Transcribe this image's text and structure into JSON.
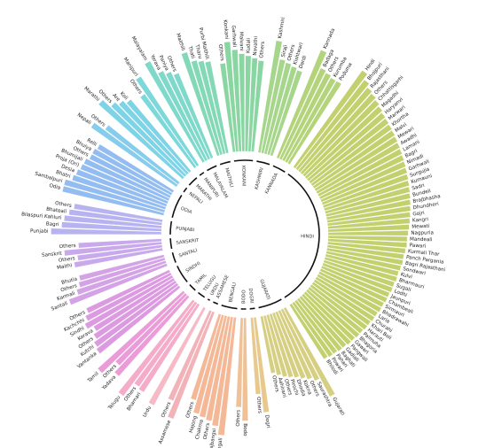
{
  "chart_data": {
    "type": "bar",
    "layout": "circular",
    "title": "",
    "groups": [
      {
        "name": "HINDI",
        "color": "#c2d06e",
        "items": [
          [
            "Hindi",
            100
          ],
          [
            "Bhojpuri",
            94
          ],
          [
            "Rajasthani",
            90
          ],
          [
            "Others",
            88
          ],
          [
            "Chhattisgarhi",
            86
          ],
          [
            "Magadhi",
            84
          ],
          [
            "Haryanvi",
            82
          ],
          [
            "Marwari",
            81
          ],
          [
            "Khortha",
            80
          ],
          [
            "Malvi",
            79
          ],
          [
            "Mewari",
            78
          ],
          [
            "Awadhi",
            77
          ],
          [
            "Lamani",
            76
          ],
          [
            "Bagri",
            75
          ],
          [
            "Nimadi",
            74
          ],
          [
            "Garhwali",
            73
          ],
          [
            "Surgujia",
            72
          ],
          [
            "Kumauni",
            71
          ],
          [
            "Sadri",
            70
          ],
          [
            "Bundeli",
            69
          ],
          [
            "Brajbhasha",
            68
          ],
          [
            "Dhundheri",
            67
          ],
          [
            "Gojri",
            66
          ],
          [
            "Kangri",
            65
          ],
          [
            "Mewati",
            64
          ],
          [
            "Nagpuria",
            63
          ],
          [
            "Mandeali",
            62
          ],
          [
            "Pawari",
            62
          ],
          [
            "Kurmali Thar",
            61
          ],
          [
            "Panch Pargania",
            60
          ],
          [
            "Bagri Rajasthani",
            60
          ],
          [
            "Sondwari",
            59
          ],
          [
            "Kulvi",
            58
          ],
          [
            "Bharmauri",
            58
          ],
          [
            "Sugali",
            57
          ],
          [
            "Lodhi",
            57
          ],
          [
            "Jaunpuri",
            56
          ],
          [
            "Chambeali",
            56
          ],
          [
            "Sirmauri",
            55
          ],
          [
            "Bhadrawahi",
            55
          ],
          [
            "Laria",
            54
          ],
          [
            "Churahi",
            54
          ],
          [
            "Khari Boli",
            53
          ],
          [
            "Harauti",
            53
          ],
          [
            "Palmuha",
            52
          ],
          [
            "Bhagoria",
            52
          ],
          [
            "Gawari",
            51
          ],
          [
            "Pangwali",
            51
          ],
          [
            "Gadiali",
            50
          ],
          [
            "Baghati",
            50
          ],
          [
            "Pahari",
            49
          ],
          [
            "Powari",
            49
          ],
          [
            "Bhilodi",
            48
          ]
        ]
      },
      {
        "name": "GUJARATI",
        "color": "#d6cf82",
        "items": [
          [
            "Gujarati",
            82
          ],
          [
            "Saurashtra",
            62
          ],
          [
            "Others",
            58
          ],
          [
            "Kokna",
            55
          ],
          [
            "Dhodia",
            52
          ],
          [
            "Pirochi",
            50
          ],
          [
            "Others",
            48
          ],
          [
            "Aahirani",
            45
          ],
          [
            "Others",
            42
          ]
        ]
      },
      {
        "name": "DOGRI",
        "color": "#e8c98d",
        "items": [
          [
            "Dogri",
            78
          ],
          [
            "Others",
            60
          ]
        ]
      },
      {
        "name": "BODO",
        "color": "#eec196",
        "items": [
          [
            "Bodo",
            85
          ],
          [
            "Others",
            72
          ]
        ]
      },
      {
        "name": "BENGALI",
        "color": "#f4b896",
        "items": [
          [
            "Bengali",
            100
          ],
          [
            "Rajbangsi",
            92
          ],
          [
            "Others",
            88
          ],
          [
            "Chakma",
            86
          ],
          [
            "Hajong",
            84
          ],
          [
            "Others",
            72
          ]
        ]
      },
      {
        "name": "ASSAMESE",
        "color": "#f3b1b8",
        "items": [
          [
            "Assamese",
            96
          ],
          [
            "Others",
            80
          ]
        ]
      },
      {
        "name": "URDU",
        "color": "#f6b9c6",
        "items": [
          [
            "Urdu",
            92
          ]
        ]
      },
      {
        "name": "TELUGU",
        "color": "#f4acc8",
        "items": [
          [
            "Bhamari",
            86
          ],
          [
            "Others",
            84
          ],
          [
            "Telugu",
            100
          ]
        ]
      },
      {
        "name": "TAMIL",
        "color": "#ea9bd8",
        "items": [
          [
            "Yadava",
            88
          ],
          [
            "Others",
            80
          ],
          [
            "Tamil",
            97
          ]
        ]
      },
      {
        "name": "SINDHI",
        "color": "#dc9be1",
        "items": [
          [
            "Vantanka",
            86
          ],
          [
            "Kutchi",
            84
          ],
          [
            "Others",
            80
          ],
          [
            "Korava",
            76
          ],
          [
            "Sindhi",
            82
          ],
          [
            "Kachchhi",
            78
          ],
          [
            "Others",
            74
          ]
        ]
      },
      {
        "name": "SANTALI",
        "color": "#d4a3e6",
        "items": [
          [
            "Santali",
            86
          ],
          [
            "Karmali",
            76
          ],
          [
            "Others",
            72
          ],
          [
            "Bhutia",
            70
          ]
        ]
      },
      {
        "name": "SANSKRIT",
        "color": "#c8a9ec",
        "items": [
          [
            "Maithi",
            72
          ],
          [
            "Others",
            68
          ],
          [
            "Sanskrit",
            80
          ],
          [
            "Others",
            66
          ]
        ]
      },
      {
        "name": "PUNJABI",
        "color": "#b7b3f0",
        "items": [
          [
            "Punjabi",
            92
          ],
          [
            "Bagri",
            82
          ],
          [
            "Bilaspuri Kahluri",
            80
          ],
          [
            "Bhateali",
            76
          ],
          [
            "Others",
            72
          ]
        ]
      },
      {
        "name": "ODIA",
        "color": "#93bdf1",
        "items": [
          [
            "Odia",
            86
          ],
          [
            "Sambalpuri",
            86
          ],
          [
            "Bhatri",
            80
          ],
          [
            "Desia",
            78
          ],
          [
            "Proja (Ori)",
            76
          ],
          [
            "Bhumijali",
            75
          ],
          [
            "Others",
            72
          ],
          [
            "Bhuiya",
            72
          ],
          [
            "Relli",
            70
          ]
        ]
      },
      {
        "name": "NEPALI",
        "color": "#86ccec",
        "items": [
          [
            "Nepali",
            86
          ],
          [
            "Others",
            74
          ]
        ]
      },
      {
        "name": "MARATHI",
        "color": "#7ed3e6",
        "items": [
          [
            "Marathi",
            94
          ],
          [
            "Others",
            84
          ],
          [
            "Are",
            80
          ],
          [
            "Koli",
            76
          ]
        ]
      },
      {
        "name": "MANIPURI",
        "color": "#7cd8da",
        "items": [
          [
            "Others",
            72
          ],
          [
            "Manipuri",
            88
          ]
        ]
      },
      {
        "name": "MALAYALAM",
        "color": "#7fd9cb",
        "items": [
          [
            "Malayalam",
            96
          ],
          [
            "Yerava",
            82
          ],
          [
            "Paniya",
            78
          ],
          [
            "Others",
            74
          ]
        ]
      },
      {
        "name": "MAITHILI",
        "color": "#83d8b6",
        "items": [
          [
            "Maithili",
            90
          ],
          [
            "Thati",
            80
          ],
          [
            "Tharu",
            78
          ],
          [
            "Purbi Maithili",
            76
          ]
        ]
      },
      {
        "name": "KONKANI",
        "color": "#8ad6a2",
        "items": [
          [
            "Others",
            72
          ],
          [
            "Konkani",
            92
          ],
          [
            "Garhwali",
            84
          ],
          [
            "Malvani",
            80
          ],
          [
            "Kudali",
            78
          ],
          [
            "Navathi",
            76
          ],
          [
            "Others",
            74
          ]
        ]
      },
      {
        "name": "KASHMIRI",
        "color": "#a6d68b",
        "items": [
          [
            "Kashmiri",
            95
          ],
          [
            "Siraji",
            78
          ],
          [
            "Others",
            76
          ],
          [
            "Kishtwari",
            74
          ],
          [
            "Dardi",
            72
          ]
        ]
      },
      {
        "name": "KANNADA",
        "color": "#b3d47b",
        "items": [
          [
            "Kannada",
            98
          ],
          [
            "Badaga",
            82
          ],
          [
            "Others",
            80
          ],
          [
            "Kurumba",
            78
          ],
          [
            "Poduma",
            78
          ]
        ]
      }
    ]
  }
}
